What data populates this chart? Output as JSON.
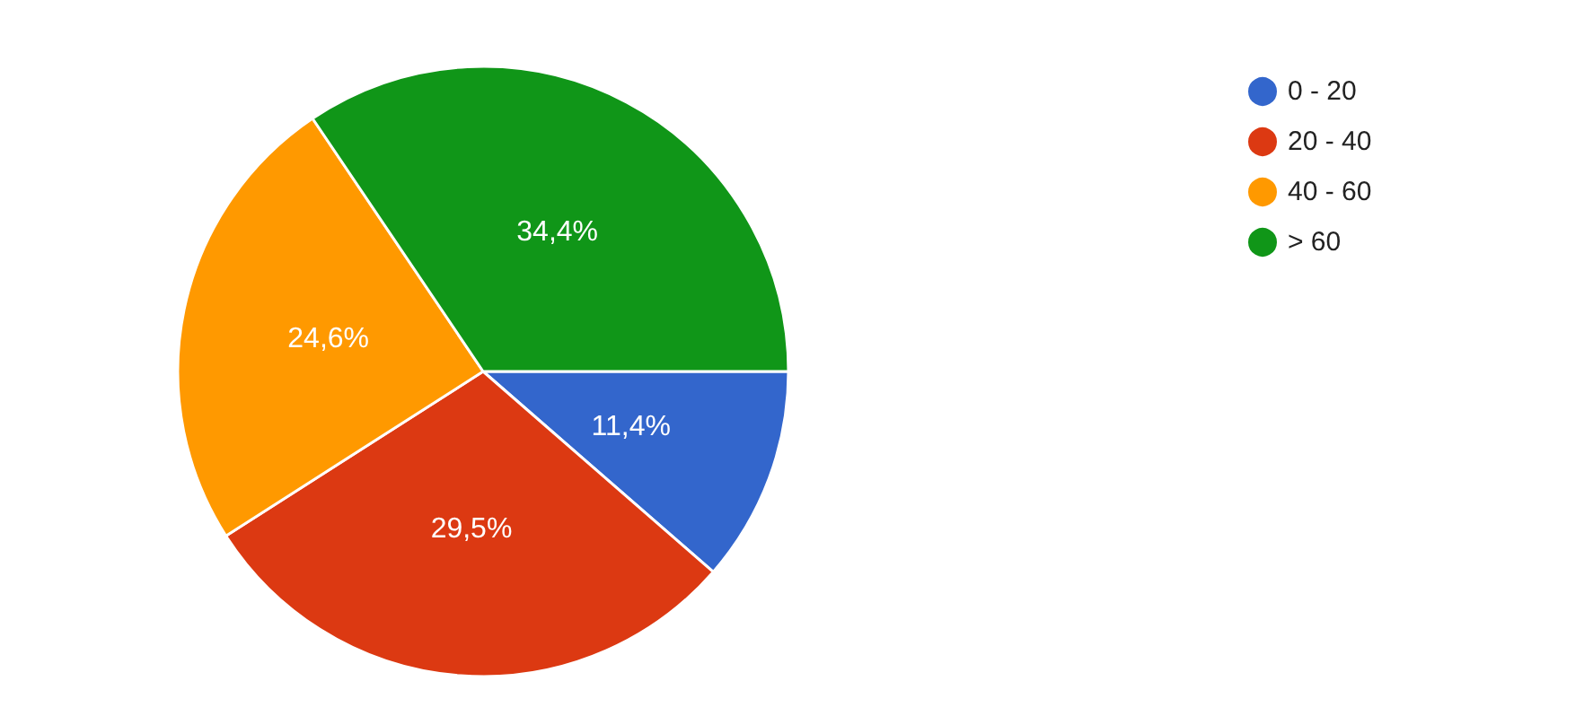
{
  "chart_data": {
    "type": "pie",
    "categories": [
      "0 - 20",
      "20 - 40",
      "40 - 60",
      "> 60"
    ],
    "values": [
      11.4,
      29.5,
      24.6,
      34.4
    ],
    "value_labels": [
      "11,4%",
      "29,5%",
      "24,6%",
      "34,4%"
    ],
    "colors": [
      "#3366cc",
      "#dc3912",
      "#ff9900",
      "#109618"
    ],
    "legend": "top right"
  }
}
